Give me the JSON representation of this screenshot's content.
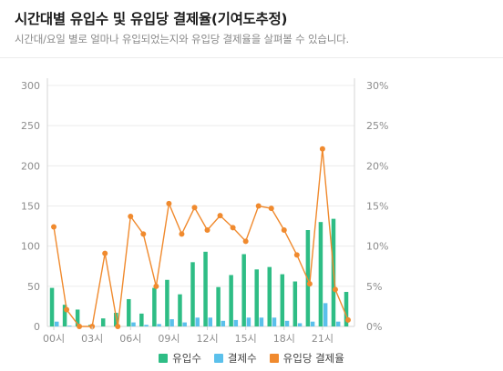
{
  "header": {
    "title": "시간대별 유입수 및 유입당 결제율(기여도추정)",
    "subtitle": "시간대/요일 별로 얼마나 유입되었는지와 유입당 결제율을 살펴볼 수 있습니다."
  },
  "colors": {
    "inflow": "#2ebd85",
    "payments": "#5bc0eb",
    "rate": "#f08a2e",
    "grid": "#ececec",
    "axis": "#d6d6d6"
  },
  "legend": [
    {
      "label": "유입수",
      "color": "#2ebd85",
      "icon": "square-swatch"
    },
    {
      "label": "결제수",
      "color": "#5bc0eb",
      "icon": "square-swatch"
    },
    {
      "label": "유입당 결제율",
      "color": "#f08a2e",
      "icon": "square-swatch"
    }
  ],
  "chart_data": {
    "type": "bar",
    "categories": [
      "00시",
      "01시",
      "02시",
      "03시",
      "04시",
      "05시",
      "06시",
      "07시",
      "08시",
      "09시",
      "10시",
      "11시",
      "12시",
      "13시",
      "14시",
      "15시",
      "16시",
      "17시",
      "18시",
      "19시",
      "20시",
      "21시",
      "22시",
      "23시"
    ],
    "x_tick_labels": [
      "00시",
      "03시",
      "06시",
      "09시",
      "12시",
      "15시",
      "18시",
      "21시"
    ],
    "x_tick_every": 3,
    "series": [
      {
        "name": "유입수",
        "axis": "left",
        "type": "bar",
        "values": [
          48,
          27,
          21,
          2,
          10,
          17,
          34,
          16,
          48,
          58,
          40,
          80,
          93,
          49,
          64,
          90,
          71,
          74,
          65,
          56,
          120,
          130,
          134,
          43
        ]
      },
      {
        "name": "결제수",
        "axis": "left",
        "type": "bar",
        "values": [
          6,
          1,
          0,
          0,
          0,
          0,
          5,
          2,
          3,
          9,
          5,
          11,
          11,
          7,
          8,
          11,
          11,
          11,
          7,
          4,
          6,
          29,
          6,
          0
        ]
      },
      {
        "name": "유입당 결제율",
        "axis": "right",
        "type": "line",
        "unit": "%",
        "values": [
          12.4,
          2.1,
          0.0,
          0.0,
          9.1,
          0.0,
          13.7,
          11.5,
          5.0,
          15.3,
          11.5,
          14.8,
          12.0,
          13.8,
          12.3,
          10.6,
          15.0,
          14.7,
          12.0,
          8.9,
          5.3,
          22.1,
          4.6,
          0.8
        ]
      }
    ],
    "y_left": {
      "range": [
        0,
        300
      ],
      "ticks": [
        0,
        50,
        100,
        150,
        200,
        250,
        300
      ]
    },
    "y_right": {
      "range": [
        0,
        30
      ],
      "ticks": [
        "0%",
        "5%",
        "10%",
        "15%",
        "20%",
        "25%",
        "30%"
      ]
    },
    "grid": true,
    "legend_position": "bottom-center"
  }
}
